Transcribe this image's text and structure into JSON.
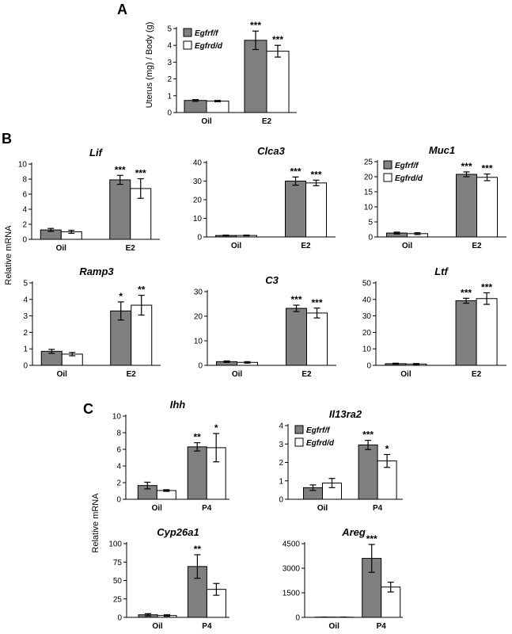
{
  "figure": {
    "panels": {
      "a": "A",
      "b": "B",
      "c": "C"
    },
    "ylabels": {
      "a": "Uterus (mg) / Body (g)",
      "b": "Relative mRNA",
      "c": "Relative mRNA"
    },
    "legend": {
      "flox": "Egfrf/f",
      "del": "Egfrd/d"
    },
    "colors": {
      "flox": "#808080",
      "del": "#ffffff",
      "stroke": "#000000"
    }
  },
  "chart_data": [
    {
      "id": "A-uterus",
      "type": "bar",
      "title": "",
      "ylabel": "Uterus (mg) / Body (g)",
      "categories": [
        "Oil",
        "E2"
      ],
      "ylim": [
        0,
        5
      ],
      "yticks": [
        0,
        1,
        2,
        3,
        4,
        5
      ],
      "series": [
        {
          "name": "Egfrf/f",
          "values": [
            0.72,
            4.3
          ],
          "errors": [
            0.05,
            0.55
          ],
          "stars": [
            "",
            "***"
          ]
        },
        {
          "name": "Egfrd/d",
          "values": [
            0.68,
            3.65
          ],
          "errors": [
            0.04,
            0.35
          ],
          "stars": [
            "",
            "***"
          ]
        }
      ]
    },
    {
      "id": "B-Lif",
      "type": "bar",
      "title": "Lif",
      "categories": [
        "Oil",
        "E2"
      ],
      "ylim": [
        0,
        10
      ],
      "yticks": [
        0,
        2,
        4,
        6,
        8,
        10
      ],
      "series": [
        {
          "name": "Egfrf/f",
          "values": [
            1.25,
            7.9
          ],
          "errors": [
            0.2,
            0.6
          ],
          "stars": [
            "",
            "***"
          ]
        },
        {
          "name": "Egfrd/d",
          "values": [
            1.0,
            6.75
          ],
          "errors": [
            0.2,
            1.3
          ],
          "stars": [
            "",
            "***"
          ]
        }
      ]
    },
    {
      "id": "B-Clca3",
      "type": "bar",
      "title": "Clca3",
      "categories": [
        "Oil",
        "E2"
      ],
      "ylim": [
        0,
        40
      ],
      "yticks": [
        0,
        10,
        20,
        30,
        40
      ],
      "series": [
        {
          "name": "Egfrf/f",
          "values": [
            0.8,
            30.0
          ],
          "errors": [
            0.2,
            2.2
          ],
          "stars": [
            "",
            "***"
          ]
        },
        {
          "name": "Egfrd/d",
          "values": [
            0.8,
            29.0
          ],
          "errors": [
            0.2,
            1.5
          ],
          "stars": [
            "",
            "***"
          ]
        }
      ]
    },
    {
      "id": "B-Muc1",
      "type": "bar",
      "title": "Muc1",
      "categories": [
        "Oil",
        "E2"
      ],
      "ylim": [
        0,
        25
      ],
      "yticks": [
        0,
        5,
        10,
        15,
        20,
        25
      ],
      "series": [
        {
          "name": "Egfrf/f",
          "values": [
            1.3,
            20.8
          ],
          "errors": [
            0.3,
            0.8
          ],
          "stars": [
            "",
            "***"
          ]
        },
        {
          "name": "Egfrd/d",
          "values": [
            1.1,
            19.8
          ],
          "errors": [
            0.3,
            1.1
          ],
          "stars": [
            "",
            "***"
          ]
        }
      ]
    },
    {
      "id": "B-Ramp3",
      "type": "bar",
      "title": "Ramp3",
      "categories": [
        "Oil",
        "E2"
      ],
      "ylim": [
        0,
        5
      ],
      "yticks": [
        0,
        1,
        2,
        3,
        4,
        5
      ],
      "series": [
        {
          "name": "Egfrf/f",
          "values": [
            0.85,
            3.3
          ],
          "errors": [
            0.12,
            0.55
          ],
          "stars": [
            "",
            "*"
          ]
        },
        {
          "name": "Egfrd/d",
          "values": [
            0.68,
            3.65
          ],
          "errors": [
            0.1,
            0.6
          ],
          "stars": [
            "",
            "**"
          ]
        }
      ]
    },
    {
      "id": "B-C3",
      "type": "bar",
      "title": "C3",
      "categories": [
        "Oil",
        "E2"
      ],
      "ylim": [
        0,
        30
      ],
      "yticks": [
        0,
        10,
        20,
        30
      ],
      "series": [
        {
          "name": "Egfrf/f",
          "values": [
            1.5,
            23.2
          ],
          "errors": [
            0.3,
            1.3
          ],
          "stars": [
            "",
            "***"
          ]
        },
        {
          "name": "Egfrd/d",
          "values": [
            1.2,
            21.3
          ],
          "errors": [
            0.3,
            2.0
          ],
          "stars": [
            "",
            "***"
          ]
        }
      ]
    },
    {
      "id": "B-Ltf",
      "type": "bar",
      "title": "Ltf",
      "categories": [
        "Oil",
        "E2"
      ],
      "ylim": [
        0,
        50
      ],
      "yticks": [
        0,
        10,
        20,
        30,
        40,
        50
      ],
      "series": [
        {
          "name": "Egfrf/f",
          "values": [
            1.0,
            39.2
          ],
          "errors": [
            0.3,
            1.5
          ],
          "stars": [
            "",
            "***"
          ]
        },
        {
          "name": "Egfrd/d",
          "values": [
            0.8,
            40.5
          ],
          "errors": [
            0.3,
            3.5
          ],
          "stars": [
            "",
            "***"
          ]
        }
      ]
    },
    {
      "id": "C-Ihh",
      "type": "bar",
      "title": "Ihh",
      "categories": [
        "Oil",
        "P4"
      ],
      "ylim": [
        0,
        10
      ],
      "yticks": [
        0,
        2,
        4,
        6,
        8,
        10
      ],
      "series": [
        {
          "name": "Egfrf/f",
          "values": [
            1.65,
            6.3
          ],
          "errors": [
            0.4,
            0.5
          ],
          "stars": [
            "",
            "**"
          ]
        },
        {
          "name": "Egfrd/d",
          "values": [
            1.05,
            6.2
          ],
          "errors": [
            0.1,
            1.7
          ],
          "stars": [
            "",
            "*"
          ]
        }
      ]
    },
    {
      "id": "C-Il13ra2",
      "type": "bar",
      "title": "Il13ra2",
      "categories": [
        "Oil",
        "P4"
      ],
      "ylim": [
        0,
        4
      ],
      "yticks": [
        0,
        1,
        2,
        3,
        4
      ],
      "series": [
        {
          "name": "Egfrf/f",
          "values": [
            0.63,
            2.95
          ],
          "errors": [
            0.15,
            0.25
          ],
          "stars": [
            "",
            "***"
          ]
        },
        {
          "name": "Egfrd/d",
          "values": [
            0.88,
            2.08
          ],
          "errors": [
            0.25,
            0.35
          ],
          "stars": [
            "",
            "*"
          ]
        }
      ]
    },
    {
      "id": "C-Cyp26a1",
      "type": "bar",
      "title": "Cyp26a1",
      "categories": [
        "Oil",
        "P4"
      ],
      "ylim": [
        0,
        100
      ],
      "yticks": [
        0,
        25,
        50,
        75,
        100
      ],
      "series": [
        {
          "name": "Egfrf/f",
          "values": [
            3.5,
            69.0
          ],
          "errors": [
            1.5,
            16.0
          ],
          "stars": [
            "",
            "**"
          ]
        },
        {
          "name": "Egfrd/d",
          "values": [
            2.5,
            38.0
          ],
          "errors": [
            1.0,
            8.0
          ],
          "stars": [
            "",
            ""
          ]
        }
      ]
    },
    {
      "id": "C-Areg",
      "type": "bar",
      "title": "Areg",
      "categories": [
        "Oil",
        "P4"
      ],
      "ylim": [
        0,
        4500
      ],
      "yticks": [
        0,
        1500,
        3000,
        4500
      ],
      "series": [
        {
          "name": "Egfrf/f",
          "values": [
            15,
            3600
          ],
          "errors": [
            5,
            850
          ],
          "stars": [
            "",
            "***"
          ]
        },
        {
          "name": "Egfrd/d",
          "values": [
            12,
            1850
          ],
          "errors": [
            5,
            300
          ],
          "stars": [
            "",
            ""
          ]
        }
      ]
    }
  ]
}
